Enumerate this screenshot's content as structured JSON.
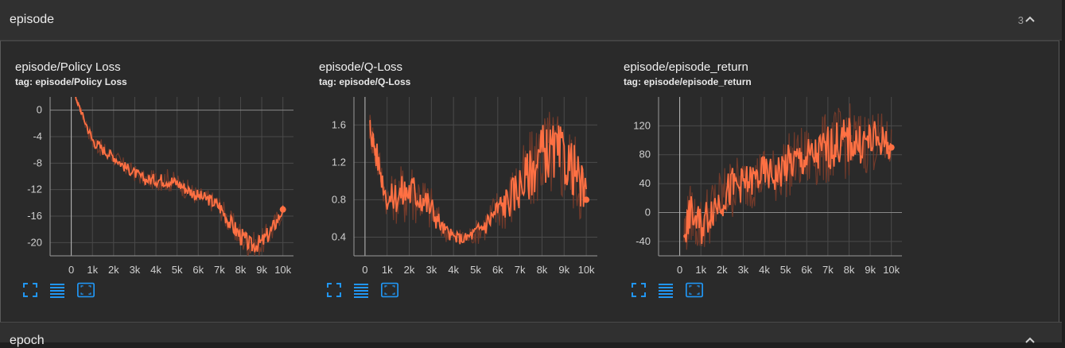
{
  "section": {
    "title": "episode",
    "count": "3"
  },
  "next_section": {
    "title": "epoch"
  },
  "colors": {
    "line": "#ff7043",
    "smooth_shadow": "#7a3c2a",
    "grid": "#4a4a4a",
    "axis": "#cfcfcf",
    "tool": "#2196f3"
  },
  "icons": {
    "fit": "fit-domain-icon",
    "data": "toggle-data-table-icon",
    "expand": "expand-chart-icon",
    "collapse": "chevron-up-icon"
  },
  "cards": [
    {
      "title": "episode/Policy Loss",
      "tag": "tag: episode/Policy Loss"
    },
    {
      "title": "episode/Q-Loss",
      "tag": "tag: episode/Q-Loss"
    },
    {
      "title": "episode/episode_return",
      "tag": "tag: episode/episode_return"
    }
  ],
  "chart_data": [
    {
      "type": "line",
      "title": "",
      "x_ticks": [
        "0",
        "1k",
        "2k",
        "3k",
        "4k",
        "5k",
        "6k",
        "7k",
        "8k",
        "9k",
        "10k"
      ],
      "y_ticks": [
        "0",
        "-4",
        "-8",
        "-12",
        "-16",
        "-20"
      ],
      "y_tick_values": [
        0,
        -4,
        -8,
        -12,
        -16,
        -20
      ],
      "xlim": [
        -1000,
        10500
      ],
      "ylim": [
        -22,
        2
      ],
      "x": [
        200,
        500,
        1000,
        1500,
        2000,
        2500,
        3000,
        3500,
        4000,
        4500,
        5000,
        5500,
        6000,
        6500,
        7000,
        7500,
        8000,
        8500,
        9000,
        9500,
        10000
      ],
      "y": [
        2,
        -0.5,
        -4.5,
        -6,
        -7,
        -8.5,
        -9.5,
        -10.5,
        -10.5,
        -10.5,
        -11,
        -12,
        -13,
        -13.5,
        -14.5,
        -17,
        -19,
        -20.5,
        -20,
        -18,
        -15
      ],
      "noise": [
        0.3,
        0.6,
        1.2,
        1.0,
        1.0,
        1.0,
        1.0,
        1.0,
        1.2,
        1.4,
        1.2,
        1.2,
        1.2,
        1.2,
        1.4,
        1.6,
        1.8,
        1.6,
        1.6,
        1.6,
        1.0
      ]
    },
    {
      "type": "line",
      "title": "",
      "x_ticks": [
        "0",
        "1k",
        "2k",
        "3k",
        "4k",
        "5k",
        "6k",
        "7k",
        "8k",
        "9k",
        "10k"
      ],
      "y_ticks": [
        "1.6",
        "1.2",
        "0.8",
        "0.4"
      ],
      "y_tick_values": [
        1.6,
        1.2,
        0.8,
        0.4
      ],
      "xlim": [
        -500,
        10500
      ],
      "ylim": [
        0.2,
        1.9
      ],
      "x": [
        200,
        500,
        1000,
        1500,
        2000,
        2500,
        3000,
        3500,
        4000,
        4500,
        5000,
        5500,
        6000,
        6500,
        7000,
        7500,
        8000,
        8500,
        9000,
        9500,
        10000
      ],
      "y": [
        1.6,
        1.3,
        0.8,
        0.85,
        0.9,
        0.85,
        0.7,
        0.5,
        0.4,
        0.38,
        0.45,
        0.55,
        0.7,
        0.8,
        0.95,
        1.1,
        1.3,
        1.3,
        1.25,
        1.1,
        0.8
      ],
      "noise": [
        0.15,
        0.2,
        0.15,
        0.25,
        0.3,
        0.25,
        0.2,
        0.1,
        0.08,
        0.08,
        0.1,
        0.15,
        0.2,
        0.25,
        0.3,
        0.35,
        0.4,
        0.4,
        0.4,
        0.35,
        0.3
      ]
    },
    {
      "type": "line",
      "title": "",
      "x_ticks": [
        "0",
        "1k",
        "2k",
        "3k",
        "4k",
        "5k",
        "6k",
        "7k",
        "8k",
        "9k",
        "10k"
      ],
      "y_ticks": [
        "120",
        "80",
        "40",
        "0",
        "-40"
      ],
      "y_tick_values": [
        120,
        80,
        40,
        0,
        -40
      ],
      "xlim": [
        -1000,
        10500
      ],
      "ylim": [
        -60,
        160
      ],
      "x": [
        200,
        500,
        1000,
        1500,
        2000,
        2500,
        3000,
        3500,
        4000,
        4500,
        5000,
        5500,
        6000,
        6500,
        7000,
        7500,
        8000,
        8500,
        9000,
        9500,
        10000
      ],
      "y": [
        -30,
        0,
        -20,
        5,
        20,
        35,
        40,
        45,
        55,
        50,
        65,
        70,
        75,
        80,
        90,
        95,
        100,
        95,
        100,
        100,
        90
      ],
      "noise": [
        30,
        30,
        35,
        35,
        35,
        35,
        30,
        30,
        30,
        30,
        35,
        35,
        35,
        35,
        40,
        40,
        40,
        35,
        35,
        30,
        25
      ]
    }
  ]
}
